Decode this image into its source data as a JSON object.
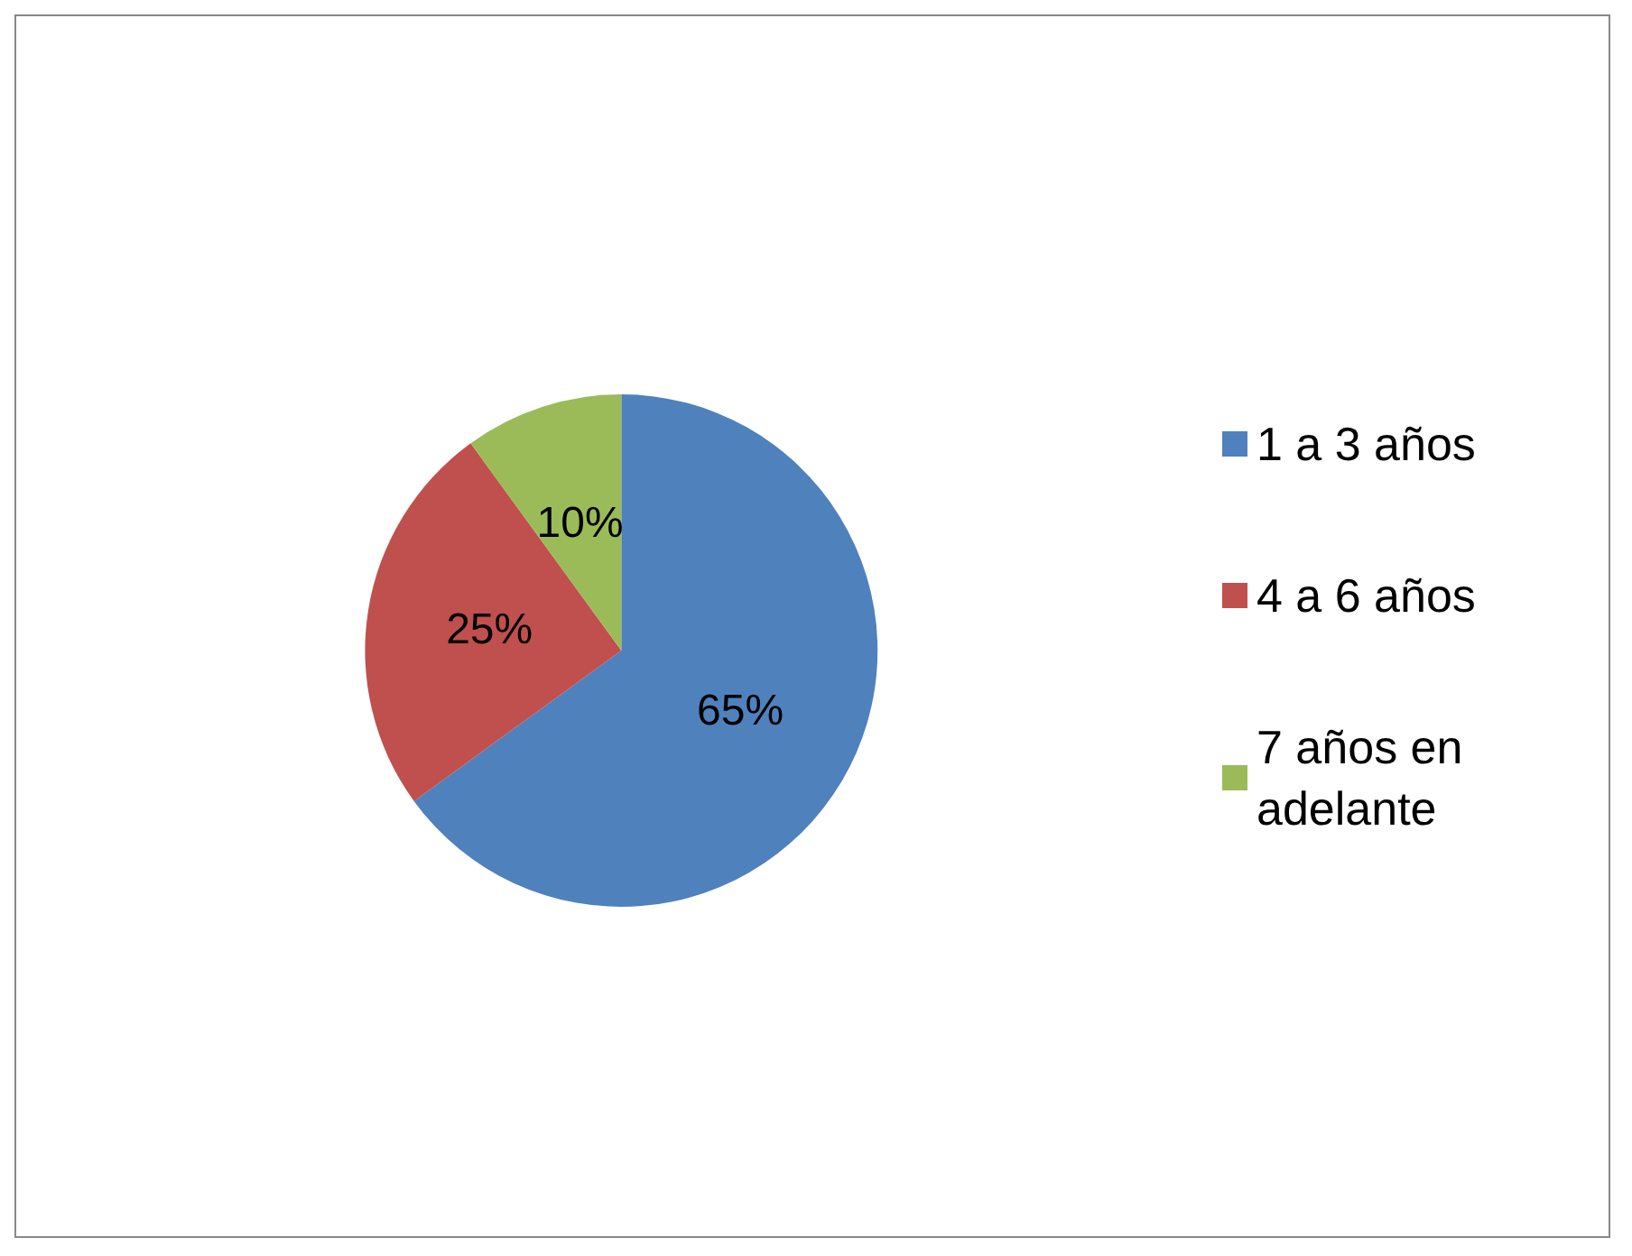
{
  "chart_data": {
    "type": "pie",
    "categories": [
      "1 a 3 años",
      "4 a 6 años",
      "7 años en adelante"
    ],
    "values": [
      65,
      25,
      10
    ],
    "colors": [
      "#4f81bd",
      "#c0504d",
      "#9bbb59"
    ],
    "value_labels": [
      "65%",
      "25%",
      "10%"
    ],
    "legend": "right"
  }
}
